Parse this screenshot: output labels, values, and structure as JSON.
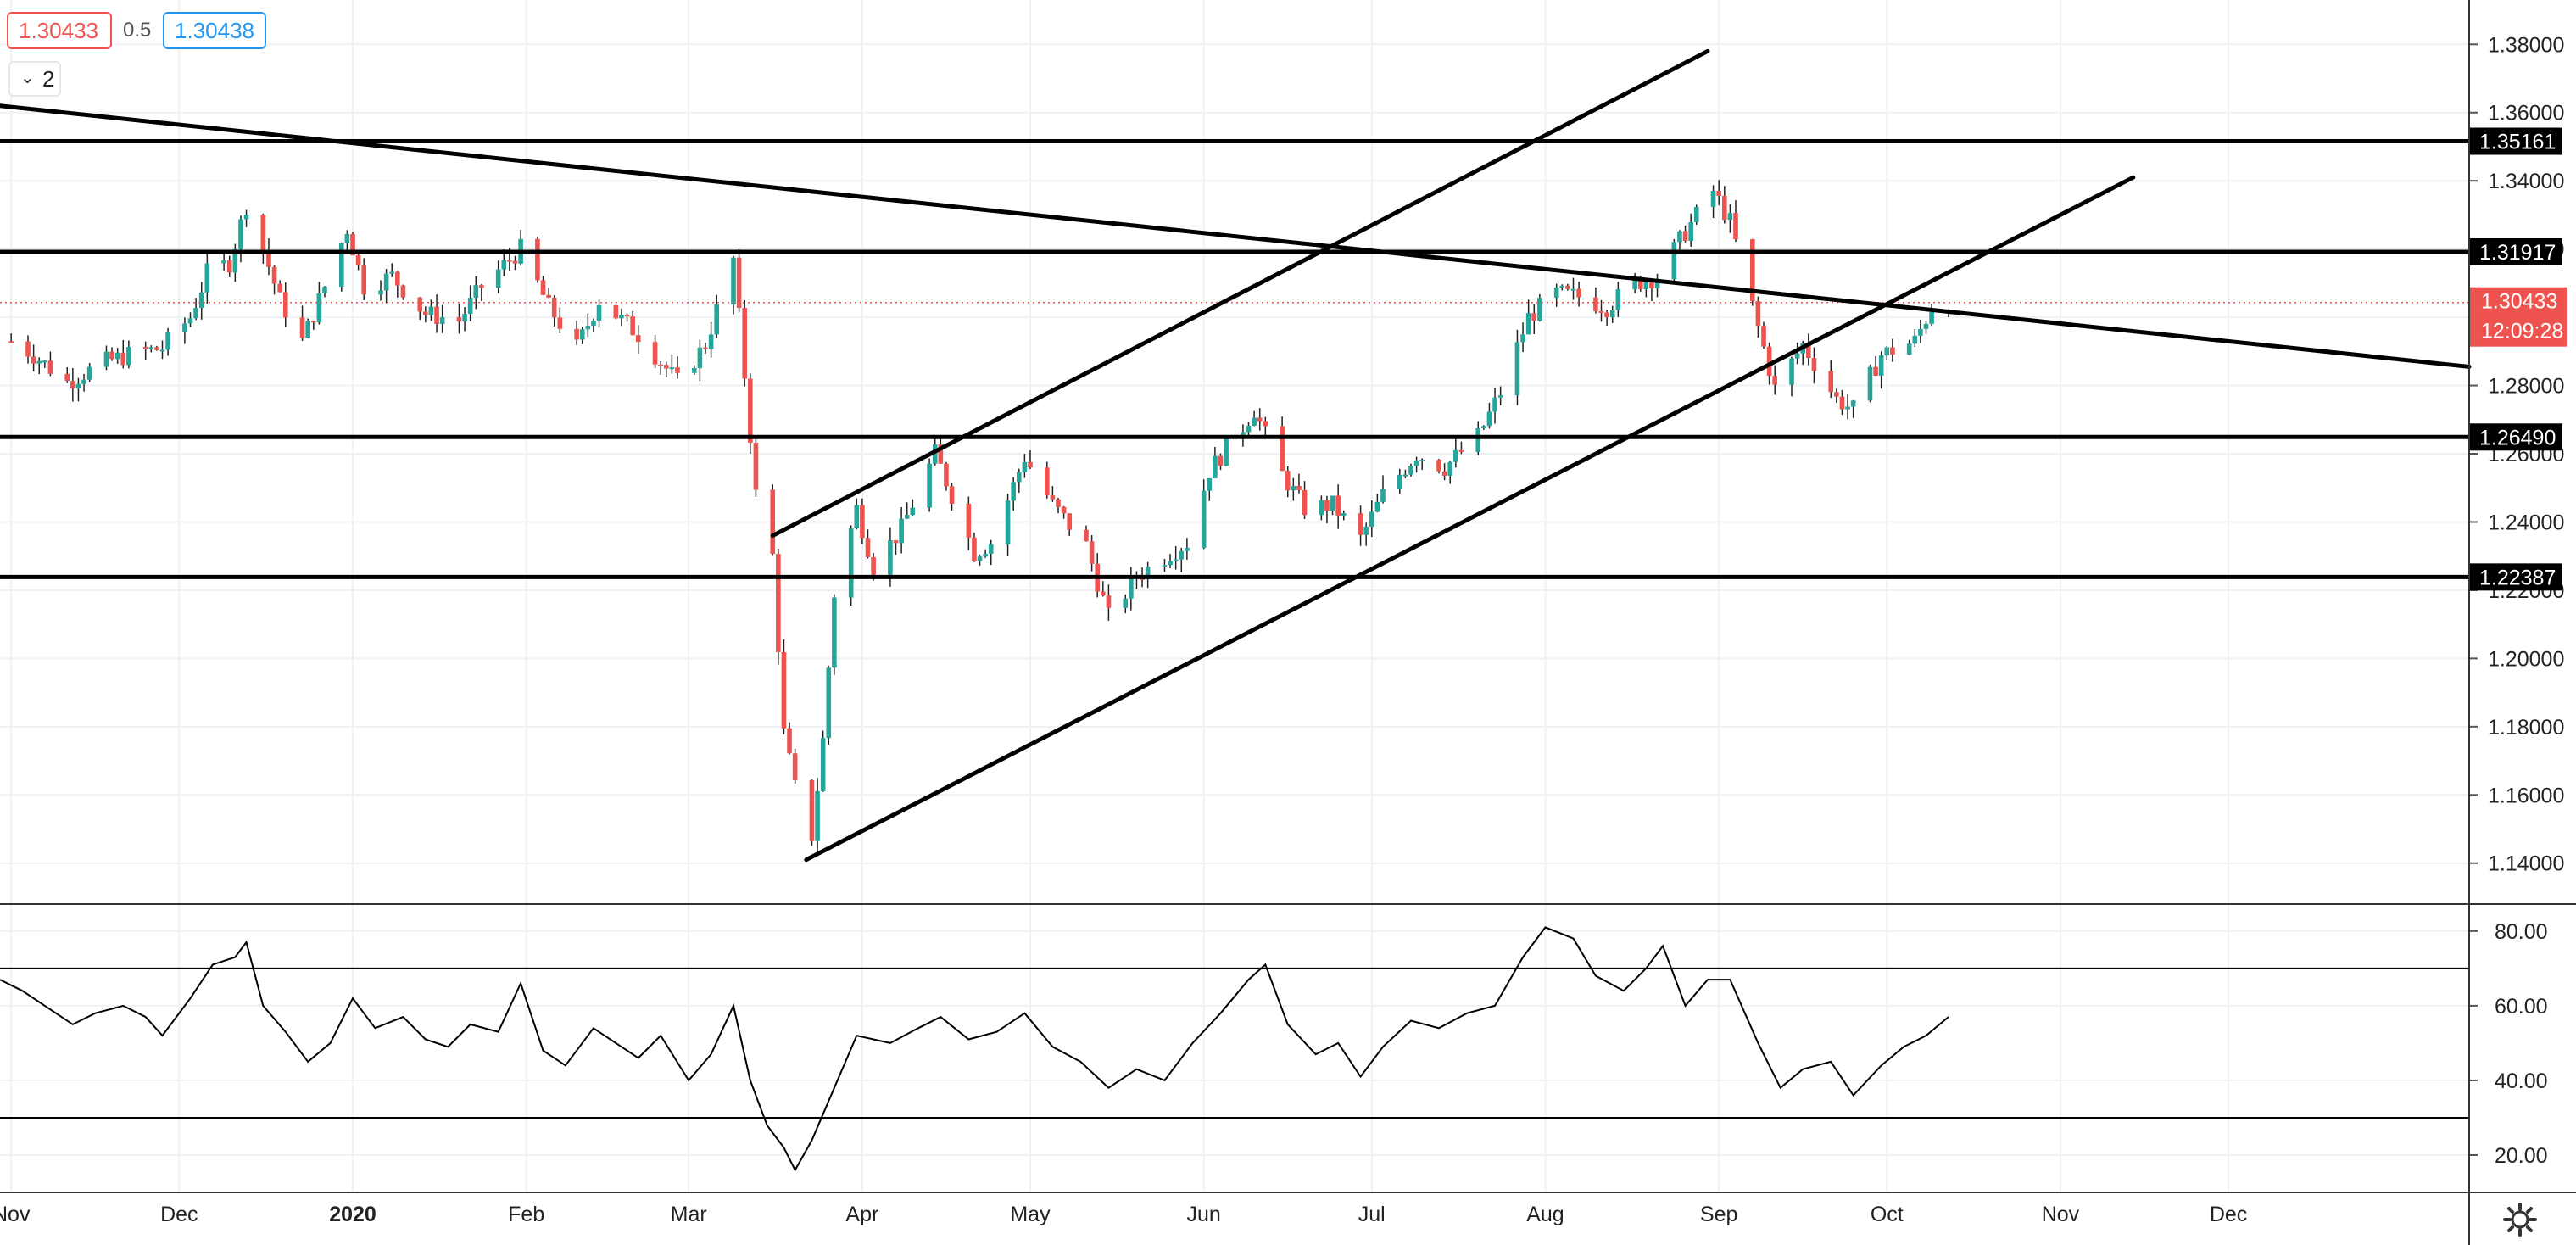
{
  "header": {
    "bid": "1.30433",
    "spread": "0.5",
    "ask": "1.30438",
    "collapse_label": "2",
    "colors": {
      "bid": "#ef5350",
      "ask": "#2196f3"
    }
  },
  "chart_data": [
    {
      "type": "candlestick",
      "interval": "daily",
      "x_ticks": [
        "Nov",
        "Dec",
        "2020",
        "Feb",
        "Mar",
        "Apr",
        "May",
        "Jun",
        "Jul",
        "Aug",
        "Sep",
        "Oct",
        "Nov",
        "Dec"
      ],
      "x_tick_dates": [
        "2019-11-01",
        "2019-12-01",
        "2020-01-01",
        "2020-02-01",
        "2020-03-01",
        "2020-04-01",
        "2020-05-01",
        "2020-06-01",
        "2020-07-01",
        "2020-08-01",
        "2020-09-01",
        "2020-10-01",
        "2020-11-01",
        "2020-12-01"
      ],
      "x_range": [
        "2019-10-30",
        "2021-01-13"
      ],
      "y_ticks": [
        1.14,
        1.16,
        1.18,
        1.2,
        1.22,
        1.24,
        1.26,
        1.28,
        1.3,
        1.32,
        1.34,
        1.36,
        1.38
      ],
      "y_tick_labels": [
        "1.14000",
        "1.16000",
        "1.18000",
        "1.20000",
        "1.22000",
        "1.24000",
        "1.26000",
        "1.28000",
        "1.30000",
        "1.32000",
        "1.34000",
        "1.36000",
        "1.38000"
      ],
      "ylim": [
        1.128,
        1.393
      ],
      "grid": true,
      "candle_colors": {
        "up": "#26a69a",
        "down": "#ef5350"
      },
      "close_path": [
        [
          "2019-11-01",
          1.293
        ],
        [
          "2019-11-05",
          1.289
        ],
        [
          "2019-11-11",
          1.281
        ],
        [
          "2019-11-18",
          1.287
        ],
        [
          "2019-11-22",
          1.289
        ],
        [
          "2019-11-28",
          1.291
        ],
        [
          "2019-12-03",
          1.3
        ],
        [
          "2019-12-06",
          1.313
        ],
        [
          "2019-12-10",
          1.316
        ],
        [
          "2019-12-13",
          1.333
        ],
        [
          "2019-12-16",
          1.32
        ],
        [
          "2019-12-19",
          1.305
        ],
        [
          "2019-12-23",
          1.293
        ],
        [
          "2019-12-27",
          1.309
        ],
        [
          "2019-12-31",
          1.326
        ],
        [
          "2020-01-03",
          1.309
        ],
        [
          "2020-01-08",
          1.312
        ],
        [
          "2020-01-14",
          1.301
        ],
        [
          "2020-01-20",
          1.299
        ],
        [
          "2020-01-24",
          1.309
        ],
        [
          "2020-01-31",
          1.32
        ],
        [
          "2020-02-05",
          1.303
        ],
        [
          "2020-02-10",
          1.291
        ],
        [
          "2020-02-14",
          1.305
        ],
        [
          "2020-02-21",
          1.295
        ],
        [
          "2020-02-28",
          1.281
        ],
        [
          "2020-03-04",
          1.292
        ],
        [
          "2020-03-09",
          1.317
        ],
        [
          "2020-03-11",
          1.283
        ],
        [
          "2020-03-13",
          1.248
        ],
        [
          "2020-03-16",
          1.23
        ],
        [
          "2020-03-18",
          1.178
        ],
        [
          "2020-03-20",
          1.162
        ],
        [
          "2020-03-23",
          1.148
        ],
        [
          "2020-03-25",
          1.176
        ],
        [
          "2020-03-27",
          1.219
        ],
        [
          "2020-03-31",
          1.244
        ],
        [
          "2020-04-03",
          1.227
        ],
        [
          "2020-04-08",
          1.238
        ],
        [
          "2020-04-14",
          1.26
        ],
        [
          "2020-04-17",
          1.248
        ],
        [
          "2020-04-21",
          1.231
        ],
        [
          "2020-04-24",
          1.234
        ],
        [
          "2020-04-30",
          1.259
        ],
        [
          "2020-05-05",
          1.245
        ],
        [
          "2020-05-11",
          1.233
        ],
        [
          "2020-05-15",
          1.212
        ],
        [
          "2020-05-20",
          1.224
        ],
        [
          "2020-05-26",
          1.231
        ],
        [
          "2020-05-29",
          1.234
        ],
        [
          "2020-06-02",
          1.255
        ],
        [
          "2020-06-08",
          1.268
        ],
        [
          "2020-06-10",
          1.273
        ],
        [
          "2020-06-15",
          1.254
        ],
        [
          "2020-06-19",
          1.244
        ],
        [
          "2020-06-24",
          1.245
        ],
        [
          "2020-06-29",
          1.235
        ],
        [
          "2020-07-03",
          1.248
        ],
        [
          "2020-07-09",
          1.26
        ],
        [
          "2020-07-14",
          1.256
        ],
        [
          "2020-07-20",
          1.265
        ],
        [
          "2020-07-24",
          1.278
        ],
        [
          "2020-07-29",
          1.3
        ],
        [
          "2020-08-03",
          1.307
        ],
        [
          "2020-08-07",
          1.306
        ],
        [
          "2020-08-12",
          1.303
        ],
        [
          "2020-08-17",
          1.31
        ],
        [
          "2020-08-21",
          1.312
        ],
        [
          "2020-08-26",
          1.325
        ],
        [
          "2020-08-31",
          1.337
        ],
        [
          "2020-09-03",
          1.328
        ],
        [
          "2020-09-08",
          1.297
        ],
        [
          "2020-09-11",
          1.279
        ],
        [
          "2020-09-16",
          1.292
        ],
        [
          "2020-09-22",
          1.276
        ],
        [
          "2020-09-25",
          1.273
        ],
        [
          "2020-09-30",
          1.289
        ],
        [
          "2020-10-06",
          1.293
        ],
        [
          "2020-10-09",
          1.303
        ],
        [
          "2020-10-12",
          1.304
        ]
      ],
      "horizontal_levels": [
        {
          "label": "1.35161",
          "value": 1.35161
        },
        {
          "label": "1.31917",
          "value": 1.31917
        },
        {
          "label": "1.26490",
          "value": 1.2649
        },
        {
          "label": "1.22387",
          "value": 1.22387
        }
      ],
      "trendlines": [
        {
          "from": [
            "2019-10-30",
            1.362
          ],
          "to": [
            "2021-01-13",
            1.2855
          ]
        },
        {
          "from": [
            "2020-03-16",
            1.236
          ],
          "to": [
            "2020-08-30",
            1.378
          ]
        },
        {
          "from": [
            "2020-03-22",
            1.141
          ],
          "to": [
            "2020-11-14",
            1.341
          ]
        }
      ],
      "last_price": {
        "label": "1.30433",
        "value": 1.30433,
        "countdown": "12:09:28",
        "color": "#ef5350"
      }
    },
    {
      "type": "line",
      "y_ticks": [
        20,
        40,
        60,
        80
      ],
      "y_tick_labels": [
        "20.00",
        "40.00",
        "60.00",
        "80.00"
      ],
      "ylim": [
        10,
        87
      ],
      "bands": [
        30,
        70
      ],
      "grid": true,
      "values": [
        [
          "2019-10-30",
          67
        ],
        [
          "2019-11-03",
          64
        ],
        [
          "2019-11-08",
          59
        ],
        [
          "2019-11-12",
          55
        ],
        [
          "2019-11-16",
          58
        ],
        [
          "2019-11-21",
          60
        ],
        [
          "2019-11-25",
          57
        ],
        [
          "2019-11-28",
          52
        ],
        [
          "2019-12-03",
          62
        ],
        [
          "2019-12-07",
          71
        ],
        [
          "2019-12-11",
          73
        ],
        [
          "2019-12-13",
          77
        ],
        [
          "2019-12-16",
          60
        ],
        [
          "2019-12-20",
          53
        ],
        [
          "2019-12-24",
          45
        ],
        [
          "2019-12-28",
          50
        ],
        [
          "2020-01-01",
          62
        ],
        [
          "2020-01-05",
          54
        ],
        [
          "2020-01-10",
          57
        ],
        [
          "2020-01-14",
          51
        ],
        [
          "2020-01-18",
          49
        ],
        [
          "2020-01-22",
          55
        ],
        [
          "2020-01-27",
          53
        ],
        [
          "2020-01-31",
          66
        ],
        [
          "2020-02-04",
          48
        ],
        [
          "2020-02-08",
          44
        ],
        [
          "2020-02-13",
          54
        ],
        [
          "2020-02-17",
          50
        ],
        [
          "2020-02-21",
          46
        ],
        [
          "2020-02-25",
          52
        ],
        [
          "2020-03-01",
          40
        ],
        [
          "2020-03-05",
          47
        ],
        [
          "2020-03-09",
          60
        ],
        [
          "2020-03-12",
          40
        ],
        [
          "2020-03-15",
          28
        ],
        [
          "2020-03-18",
          22
        ],
        [
          "2020-03-20",
          16
        ],
        [
          "2020-03-23",
          24
        ],
        [
          "2020-03-27",
          38
        ],
        [
          "2020-03-31",
          52
        ],
        [
          "2020-04-06",
          50
        ],
        [
          "2020-04-11",
          54
        ],
        [
          "2020-04-15",
          57
        ],
        [
          "2020-04-20",
          51
        ],
        [
          "2020-04-25",
          53
        ],
        [
          "2020-04-30",
          58
        ],
        [
          "2020-05-05",
          49
        ],
        [
          "2020-05-10",
          45
        ],
        [
          "2020-05-15",
          38
        ],
        [
          "2020-05-20",
          43
        ],
        [
          "2020-05-25",
          40
        ],
        [
          "2020-05-30",
          50
        ],
        [
          "2020-06-04",
          58
        ],
        [
          "2020-06-09",
          67
        ],
        [
          "2020-06-12",
          71
        ],
        [
          "2020-06-16",
          55
        ],
        [
          "2020-06-21",
          47
        ],
        [
          "2020-06-25",
          50
        ],
        [
          "2020-06-29",
          41
        ],
        [
          "2020-07-03",
          49
        ],
        [
          "2020-07-08",
          56
        ],
        [
          "2020-07-13",
          54
        ],
        [
          "2020-07-18",
          58
        ],
        [
          "2020-07-23",
          60
        ],
        [
          "2020-07-28",
          73
        ],
        [
          "2020-08-01",
          81
        ],
        [
          "2020-08-06",
          78
        ],
        [
          "2020-08-10",
          68
        ],
        [
          "2020-08-15",
          64
        ],
        [
          "2020-08-19",
          70
        ],
        [
          "2020-08-22",
          76
        ],
        [
          "2020-08-26",
          60
        ],
        [
          "2020-08-30",
          67
        ],
        [
          "2020-09-03",
          67
        ],
        [
          "2020-09-08",
          50
        ],
        [
          "2020-09-12",
          38
        ],
        [
          "2020-09-16",
          43
        ],
        [
          "2020-09-21",
          45
        ],
        [
          "2020-09-25",
          36
        ],
        [
          "2020-09-30",
          44
        ],
        [
          "2020-10-04",
          49
        ],
        [
          "2020-10-08",
          52
        ],
        [
          "2020-10-12",
          57
        ]
      ]
    }
  ]
}
